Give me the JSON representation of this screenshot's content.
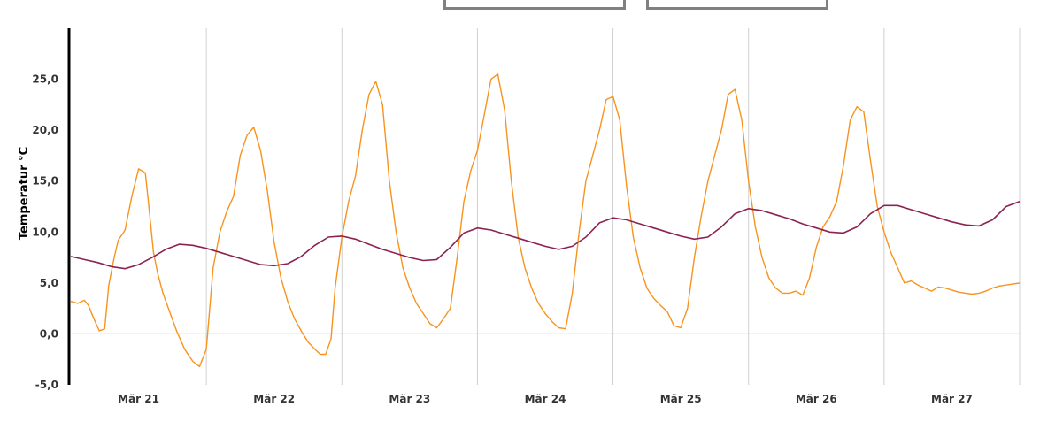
{
  "header": {
    "control_a": "",
    "control_b": ""
  },
  "chart_data": {
    "type": "line",
    "title": "",
    "ylabel": "Temperatur °C",
    "xlabel": "",
    "ylim": [
      -5,
      30
    ],
    "y_ticks": [
      "-5,0",
      "0,0",
      "5,0",
      "10,0",
      "15,0",
      "20,0",
      "25,0"
    ],
    "y_tick_values": [
      -5,
      0,
      5,
      10,
      15,
      20,
      25
    ],
    "x_ticks": [
      "Mär 21",
      "Mär 22",
      "Mär 23",
      "Mär 24",
      "Mär 25",
      "Mär 26",
      "Mär 27"
    ],
    "x_range_days": [
      20.0,
      27.0
    ],
    "grid": "vertical lines between days, horizontal line at 0",
    "colors": {
      "air": "#f7931e",
      "soil": "#8b2252",
      "axis": "#000000",
      "grid": "#d0d0d0"
    },
    "series": [
      {
        "color": "#f7931e",
        "x": [
          20.0,
          20.05,
          20.1,
          20.13,
          20.17,
          20.21,
          20.25,
          20.28,
          20.32,
          20.35,
          20.4,
          20.45,
          20.5,
          20.55,
          20.58,
          20.61,
          20.64,
          20.68,
          20.72,
          20.78,
          20.84,
          20.9,
          20.95,
          21.0,
          21.05,
          21.1,
          21.15,
          21.2,
          21.25,
          21.3,
          21.35,
          21.4,
          21.45,
          21.5,
          21.55,
          21.6,
          21.65,
          21.7,
          21.75,
          21.8,
          21.84,
          21.88,
          21.92,
          21.95,
          22.0,
          22.05,
          22.1,
          22.15,
          22.2,
          22.25,
          22.3,
          22.35,
          22.4,
          22.45,
          22.5,
          22.55,
          22.6,
          22.65,
          22.7,
          22.75,
          22.8,
          22.85,
          22.9,
          22.95,
          23.0,
          23.05,
          23.1,
          23.15,
          23.2,
          23.25,
          23.3,
          23.35,
          23.4,
          23.45,
          23.5,
          23.55,
          23.6,
          23.65,
          23.7,
          23.75,
          23.8,
          23.85,
          23.9,
          23.95,
          24.0,
          24.05,
          24.1,
          24.15,
          24.2,
          24.25,
          24.3,
          24.35,
          24.4,
          24.45,
          24.5,
          24.55,
          24.6,
          24.65,
          24.7,
          24.75,
          24.8,
          24.85,
          24.9,
          24.95,
          25.0,
          25.05,
          25.1,
          25.15,
          25.2,
          25.25,
          25.3,
          25.35,
          25.4,
          25.45,
          25.5,
          25.55,
          25.6,
          25.65,
          25.7,
          25.75,
          25.8,
          25.85,
          25.9,
          25.95,
          26.0,
          26.05,
          26.1,
          26.15,
          26.2,
          26.25,
          26.3,
          26.35,
          26.4,
          26.45,
          26.5,
          26.55,
          26.6,
          26.65,
          26.7,
          26.75,
          26.8,
          26.85,
          26.9,
          26.95,
          27.0
        ],
        "values": [
          3.2,
          3.0,
          3.3,
          2.8,
          1.5,
          0.3,
          0.5,
          4.8,
          7.5,
          9.2,
          10.2,
          13.5,
          16.2,
          15.8,
          12.0,
          8.0,
          6.0,
          4.0,
          2.5,
          0.3,
          -1.5,
          -2.7,
          -3.2,
          -1.5,
          6.5,
          10.0,
          12.0,
          13.5,
          17.5,
          19.5,
          20.3,
          18.0,
          14.0,
          9.0,
          5.5,
          3.2,
          1.5,
          0.3,
          -0.8,
          -1.5,
          -2.0,
          -2.0,
          -0.5,
          4.5,
          9.5,
          13.0,
          15.5,
          20.0,
          23.5,
          24.8,
          22.5,
          15.0,
          10.0,
          6.5,
          4.5,
          3.0,
          2.0,
          1.0,
          0.6,
          1.5,
          2.5,
          7.5,
          13.0,
          16.0,
          18.0,
          21.5,
          25.0,
          25.5,
          22.0,
          15.0,
          9.5,
          6.5,
          4.5,
          3.0,
          2.0,
          1.2,
          0.6,
          0.5,
          4.0,
          10.0,
          15.0,
          17.5,
          20.0,
          23.0,
          23.3,
          21.0,
          14.5,
          9.5,
          6.5,
          4.5,
          3.5,
          2.8,
          2.2,
          0.8,
          0.6,
          2.5,
          7.5,
          11.5,
          15.0,
          17.5,
          20.0,
          23.5,
          24.0,
          21.0,
          15.0,
          10.5,
          7.5,
          5.5,
          4.5,
          4.0,
          4.0,
          4.2,
          3.8,
          5.5,
          8.5,
          10.5,
          11.5,
          13.0,
          16.5,
          21.0,
          22.3,
          21.8,
          17.0,
          12.5,
          10.0,
          8.0,
          6.5,
          5.0,
          5.2,
          4.8,
          4.5,
          4.2,
          4.6,
          4.5,
          4.3,
          4.1,
          4.0,
          3.9,
          4.0,
          4.2,
          4.5,
          4.7,
          4.8,
          4.9,
          5.0
        ]
      },
      {
        "color": "#8b2252",
        "x": [
          20.0,
          20.1,
          20.2,
          20.3,
          20.4,
          20.5,
          20.6,
          20.7,
          20.8,
          20.9,
          21.0,
          21.1,
          21.2,
          21.3,
          21.4,
          21.5,
          21.6,
          21.7,
          21.8,
          21.9,
          22.0,
          22.1,
          22.2,
          22.3,
          22.4,
          22.5,
          22.6,
          22.7,
          22.8,
          22.9,
          23.0,
          23.1,
          23.2,
          23.3,
          23.4,
          23.5,
          23.6,
          23.7,
          23.8,
          23.9,
          24.0,
          24.1,
          24.2,
          24.3,
          24.4,
          24.5,
          24.6,
          24.7,
          24.8,
          24.9,
          25.0,
          25.1,
          25.2,
          25.3,
          25.4,
          25.5,
          25.6,
          25.7,
          25.8,
          25.9,
          26.0,
          26.1,
          26.2,
          26.3,
          26.4,
          26.5,
          26.6,
          26.7,
          26.8,
          26.9,
          27.0
        ],
        "values": [
          7.6,
          7.3,
          7.0,
          6.6,
          6.4,
          6.8,
          7.5,
          8.3,
          8.8,
          8.7,
          8.4,
          8.0,
          7.6,
          7.2,
          6.8,
          6.7,
          6.9,
          7.6,
          8.7,
          9.5,
          9.6,
          9.3,
          8.8,
          8.3,
          7.9,
          7.5,
          7.2,
          7.3,
          8.5,
          9.9,
          10.4,
          10.2,
          9.8,
          9.4,
          9.0,
          8.6,
          8.3,
          8.6,
          9.5,
          10.9,
          11.4,
          11.2,
          10.8,
          10.4,
          10.0,
          9.6,
          9.3,
          9.5,
          10.5,
          11.8,
          12.3,
          12.1,
          11.7,
          11.3,
          10.8,
          10.4,
          10.0,
          9.9,
          10.5,
          11.8,
          12.6,
          12.6,
          12.2,
          11.8,
          11.4,
          11.0,
          10.7,
          10.6,
          11.2,
          12.5,
          13.0
        ]
      }
    ]
  }
}
